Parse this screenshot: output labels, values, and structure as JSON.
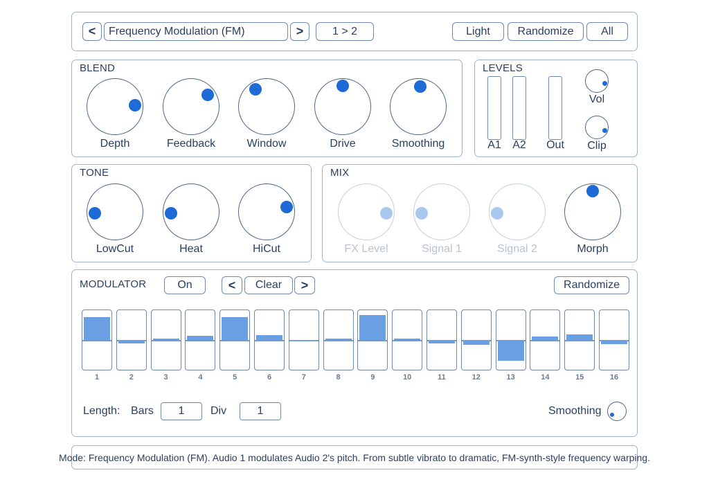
{
  "header": {
    "prev_label": "<",
    "next_label": ">",
    "preset_name": "Frequency Modulation (FM)",
    "routing_label": "1 > 2",
    "light_label": "Light",
    "randomize_label": "Randomize",
    "all_label": "All"
  },
  "blend": {
    "title": "BLEND",
    "knobs": [
      {
        "label": "Depth",
        "value": 0.82
      },
      {
        "label": "Feedback",
        "value": 0.7
      },
      {
        "label": "Window",
        "value": 0.38
      },
      {
        "label": "Drive",
        "value": 0.5
      },
      {
        "label": "Smoothing",
        "value": 0.52
      }
    ]
  },
  "levels": {
    "title": "LEVELS",
    "meters": [
      {
        "label": "A1"
      },
      {
        "label": "A2"
      },
      {
        "label": "Out"
      }
    ],
    "knobs": [
      {
        "label": "Vol",
        "value": 0.9
      },
      {
        "label": "Clip",
        "value": 0.92
      }
    ]
  },
  "tone": {
    "title": "TONE",
    "knobs": [
      {
        "label": "LowCut",
        "value": 0.15
      },
      {
        "label": "Heat",
        "value": 0.15
      },
      {
        "label": "HiCut",
        "value": 0.78
      }
    ]
  },
  "mix": {
    "title": "MIX",
    "knobs": [
      {
        "label": "FX Level",
        "value": 0.85,
        "dim": true
      },
      {
        "label": "Signal 1",
        "value": 0.15,
        "dim": true
      },
      {
        "label": "Signal 2",
        "value": 0.15,
        "dim": true
      },
      {
        "label": "Morph",
        "value": 0.5,
        "dim": false
      }
    ]
  },
  "modulator": {
    "title": "MODULATOR",
    "on_label": "On",
    "prev_label": "<",
    "clear_label": "Clear",
    "next_label": ">",
    "randomize_label": "Randomize",
    "steps": [
      {
        "num": "1",
        "value": 0.8
      },
      {
        "num": "2",
        "value": -0.12
      },
      {
        "num": "3",
        "value": 0.05
      },
      {
        "num": "4",
        "value": 0.14
      },
      {
        "num": "5",
        "value": 0.8
      },
      {
        "num": "6",
        "value": 0.18
      },
      {
        "num": "7",
        "value": -0.03
      },
      {
        "num": "8",
        "value": 0.02
      },
      {
        "num": "9",
        "value": 0.88
      },
      {
        "num": "10",
        "value": 0.01
      },
      {
        "num": "11",
        "value": -0.12
      },
      {
        "num": "12",
        "value": -0.18
      },
      {
        "num": "13",
        "value": -0.72
      },
      {
        "num": "14",
        "value": 0.12
      },
      {
        "num": "15",
        "value": 0.2
      },
      {
        "num": "16",
        "value": -0.15
      }
    ],
    "length_label": "Length:",
    "bars_label": "Bars",
    "bars_value": "1",
    "div_label": "Div",
    "div_value": "1",
    "smoothing_label": "Smoothing",
    "smoothing_value": 0.05
  },
  "status": "Mode: Frequency Modulation (FM). Audio 1 modulates Audio 2's pitch. From subtle vibrato to dramatic, FM-synth-style frequency warping.",
  "colors": {
    "accent": "#1e6ad6",
    "step_fill": "#6a9fe3",
    "border": "#6f88ad",
    "dim_dot": "#a9c7ef"
  }
}
